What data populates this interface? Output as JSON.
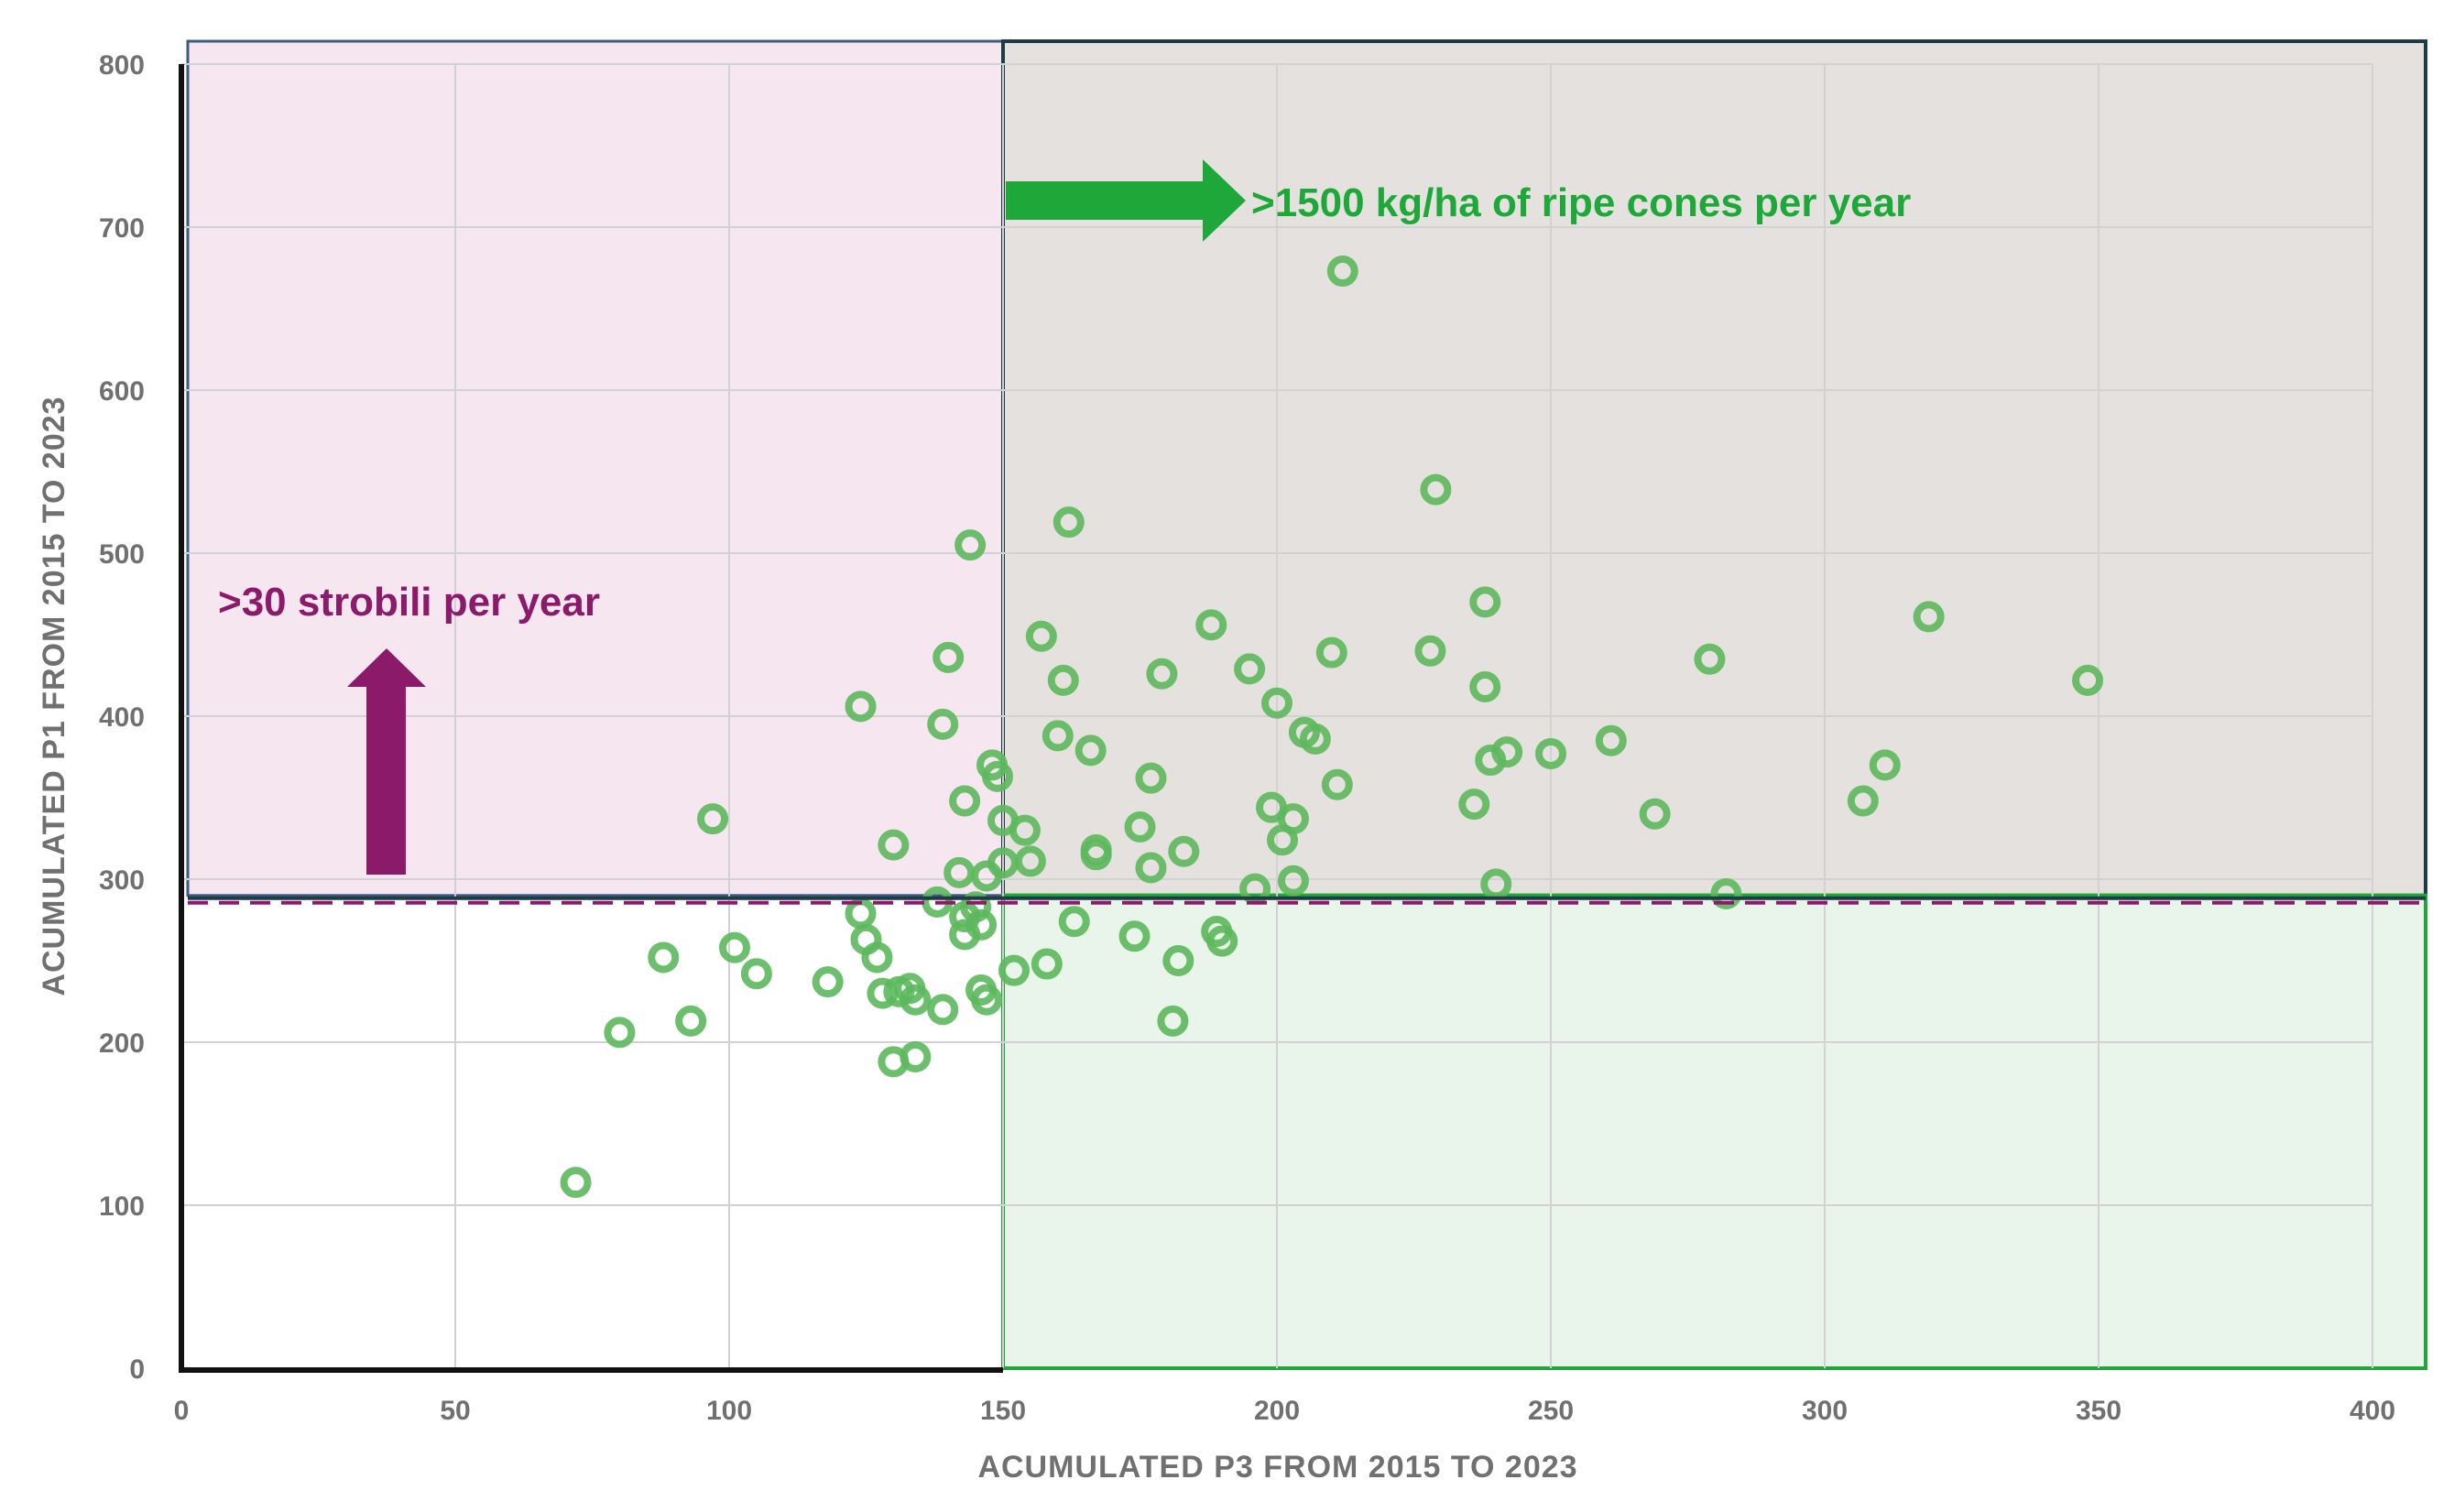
{
  "chart_data": {
    "type": "scatter",
    "title": "",
    "xlabel": "ACUMULATED  P3 FROM 2015 TO 2023",
    "ylabel": "ACUMULATED  P1 FROM 2015 TO 2023",
    "xlim": [
      0,
      400
    ],
    "ylim": [
      0,
      800
    ],
    "x_ticks": [
      "0",
      "50",
      "100",
      "150",
      "200",
      "250",
      "300",
      "350",
      "400"
    ],
    "y_ticks": [
      "0",
      "100",
      "200",
      "300",
      "400",
      "500",
      "600",
      "700",
      "800"
    ],
    "grid": true,
    "x_threshold": 150,
    "y_threshold": 290,
    "annotations": {
      "cones": ">1500 kg/ha of ripe cones per year",
      "strobili": ">30 strobili per year"
    },
    "colors": {
      "points": "#5cb85c",
      "cones": "#1fa83a",
      "strobili": "#8b1a6b",
      "region_pink": "#f5e6ef",
      "region_gray": "#e5e1de",
      "region_green": "#e9f5ea"
    },
    "points": [
      [
        72,
        114
      ],
      [
        80,
        206
      ],
      [
        88,
        252
      ],
      [
        93,
        213
      ],
      [
        97,
        337
      ],
      [
        101,
        258
      ],
      [
        105,
        242
      ],
      [
        118,
        237
      ],
      [
        124,
        406
      ],
      [
        124,
        279
      ],
      [
        125,
        263
      ],
      [
        127,
        252
      ],
      [
        128,
        230
      ],
      [
        130,
        321
      ],
      [
        130,
        188
      ],
      [
        131,
        231
      ],
      [
        133,
        233
      ],
      [
        134,
        226
      ],
      [
        134,
        191
      ],
      [
        138,
        286
      ],
      [
        139,
        395
      ],
      [
        139,
        220
      ],
      [
        140,
        436
      ],
      [
        142,
        304
      ],
      [
        143,
        348
      ],
      [
        143,
        277
      ],
      [
        143,
        266
      ],
      [
        144,
        505
      ],
      [
        145,
        283
      ],
      [
        146,
        272
      ],
      [
        146,
        232
      ],
      [
        147,
        302
      ],
      [
        147,
        226
      ],
      [
        148,
        370
      ],
      [
        149,
        363
      ],
      [
        150,
        336
      ],
      [
        150,
        310
      ],
      [
        152,
        244
      ],
      [
        154,
        330
      ],
      [
        155,
        311
      ],
      [
        157,
        449
      ],
      [
        158,
        248
      ],
      [
        160,
        388
      ],
      [
        161,
        422
      ],
      [
        162,
        519
      ],
      [
        163,
        274
      ],
      [
        166,
        379
      ],
      [
        167,
        315
      ],
      [
        167,
        318
      ],
      [
        174,
        265
      ],
      [
        175,
        332
      ],
      [
        177,
        362
      ],
      [
        177,
        307
      ],
      [
        179,
        426
      ],
      [
        181,
        213
      ],
      [
        182,
        250
      ],
      [
        183,
        317
      ],
      [
        188,
        456
      ],
      [
        189,
        268
      ],
      [
        190,
        262
      ],
      [
        195,
        429
      ],
      [
        196,
        294
      ],
      [
        199,
        344
      ],
      [
        200,
        408
      ],
      [
        201,
        324
      ],
      [
        203,
        337
      ],
      [
        203,
        299
      ],
      [
        205,
        390
      ],
      [
        207,
        386
      ],
      [
        210,
        439
      ],
      [
        211,
        358
      ],
      [
        212,
        673
      ],
      [
        228,
        440
      ],
      [
        229,
        539
      ],
      [
        236,
        346
      ],
      [
        238,
        470
      ],
      [
        238,
        418
      ],
      [
        239,
        373
      ],
      [
        240,
        297
      ],
      [
        242,
        378
      ],
      [
        250,
        377
      ],
      [
        261,
        385
      ],
      [
        269,
        340
      ],
      [
        279,
        435
      ],
      [
        282,
        291
      ],
      [
        307,
        348
      ],
      [
        311,
        370
      ],
      [
        319,
        461
      ],
      [
        348,
        422
      ]
    ]
  }
}
